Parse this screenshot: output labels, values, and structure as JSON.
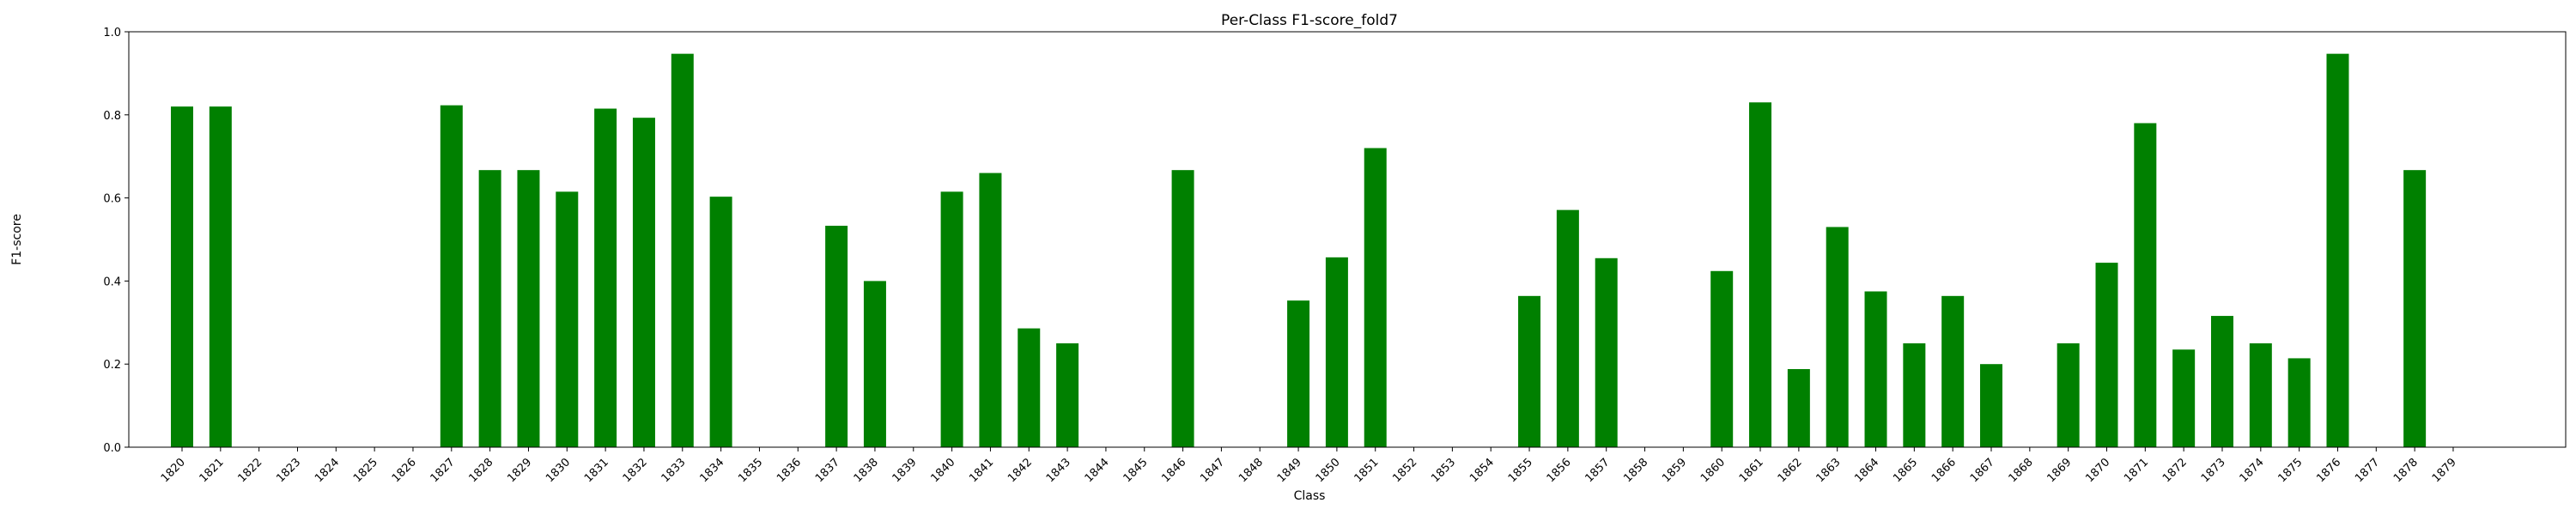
{
  "chart_data": {
    "type": "bar",
    "title": "Per-Class F1-score_fold7",
    "xlabel": "Class",
    "ylabel": "F1-score",
    "ylim": [
      0,
      1.0
    ],
    "yticks": [
      "0.0",
      "0.2",
      "0.4",
      "0.6",
      "0.8",
      "1.0"
    ],
    "grid": false,
    "bar_color": "#008000",
    "categories": [
      "1820",
      "1821",
      "1822",
      "1823",
      "1824",
      "1825",
      "1826",
      "1827",
      "1828",
      "1829",
      "1830",
      "1831",
      "1832",
      "1833",
      "1834",
      "1835",
      "1836",
      "1837",
      "1838",
      "1839",
      "1840",
      "1841",
      "1842",
      "1843",
      "1844",
      "1845",
      "1846",
      "1847",
      "1848",
      "1849",
      "1850",
      "1851",
      "1852",
      "1853",
      "1854",
      "1855",
      "1856",
      "1857",
      "1858",
      "1859",
      "1860",
      "1861",
      "1862",
      "1863",
      "1864",
      "1865",
      "1866",
      "1867",
      "1868",
      "1869",
      "1870",
      "1871",
      "1872",
      "1873",
      "1874",
      "1875",
      "1876",
      "1877",
      "1878",
      "1879"
    ],
    "values": [
      0.82,
      0.82,
      0,
      0,
      0,
      0,
      0,
      0.823,
      0.667,
      0.667,
      0.615,
      0.815,
      0.793,
      0.947,
      0.603,
      0,
      0,
      0.533,
      0.4,
      0,
      0.615,
      0.66,
      0.286,
      0.25,
      0,
      0,
      0.667,
      0,
      0,
      0.353,
      0.457,
      0.72,
      0,
      0,
      0,
      0.364,
      0.571,
      0.455,
      0,
      0,
      0.424,
      0.83,
      0.188,
      0.53,
      0.375,
      0.25,
      0.364,
      0.2,
      0,
      0.25,
      0.444,
      0.78,
      0.235,
      0.316,
      0.25,
      0.214,
      0.947,
      0,
      0.667,
      0
    ]
  }
}
